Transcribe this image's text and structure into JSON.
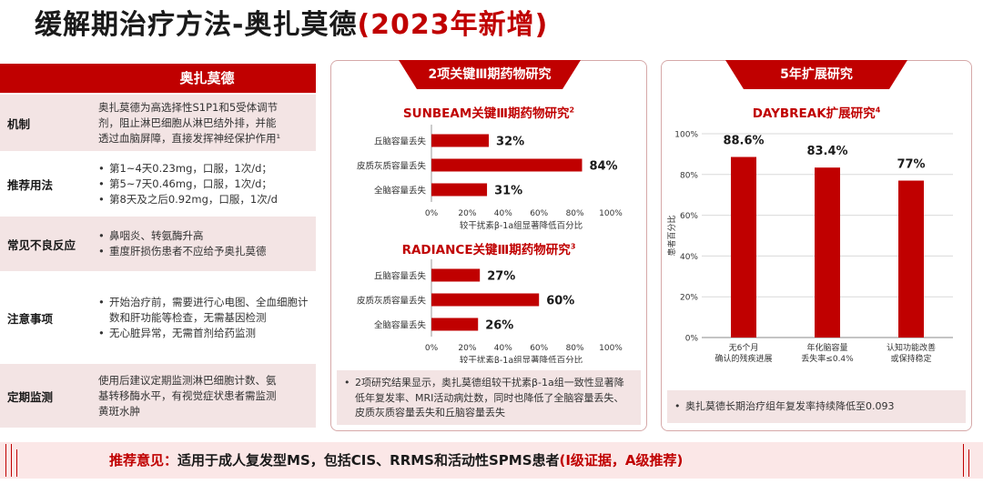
{
  "title": {
    "main": "缓解期治疗方法-奥扎莫德",
    "suffix": "(2023年新增)"
  },
  "left_table": {
    "header": "奥扎莫德",
    "rows": [
      {
        "label": "机制",
        "lines": [
          "奥扎莫德为高选择性S1P1和5受体调节",
          "剂，阻止淋巴细胞从淋巴结外排，并能",
          "透过血脑屏障，直接发挥神经保护作用¹"
        ]
      },
      {
        "label": "推荐用法",
        "bullets": [
          "第1~4天0.23mg，口服，1次/d；",
          "第5~7天0.46mg，口服，1次/d；",
          "第8天及之后0.92mg，口服，1次/d"
        ]
      },
      {
        "label": "常见不良反应",
        "bullets": [
          "鼻咽炎、转氨酶升高",
          "重度肝损伤患者不应给予奥扎莫德"
        ]
      },
      {
        "label": "注意事项",
        "bullets": [
          "开始治疗前，需要进行心电图、全血细胞计数和肝功能等检查，无需基因检测",
          "无心脏异常，无需首剂给药监测"
        ]
      },
      {
        "label": "定期监测",
        "lines": [
          "使用后建议定期监测淋巴细胞计数、氨",
          "基转移酶水平，有视觉症状患者需监测",
          "黄斑水肿"
        ]
      }
    ]
  },
  "mid_panel": {
    "tab": "2项关键Ⅲ期药物研究",
    "note": "2项研究结果显示，奥扎莫德组较干扰素β-1a组一致性显著降低年复发率、MRI活动病灶数，同时也降低了全脑容量丢失、皮质灰质容量丢失和丘脑容量丢失"
  },
  "right_panel": {
    "tab": "5年扩展研究",
    "note": "奥扎莫德长期治疗组年复发率持续降低至0.093"
  },
  "chart_data": [
    {
      "type": "bar",
      "orientation": "horizontal",
      "title": "SUNBEAM关键Ⅲ期药物研究",
      "title_sup": "2",
      "categories": [
        "丘脑容量丢失",
        "皮质灰质容量丢失",
        "全脑容量丢失"
      ],
      "values": [
        32,
        84,
        31
      ],
      "value_labels": [
        "32%",
        "84%",
        "31%"
      ],
      "xlabel": "较干扰素β-1a组显著降低百分比",
      "xticks": [
        "0%",
        "20%",
        "40%",
        "60%",
        "80%",
        "100%"
      ],
      "xlim": [
        0,
        100
      ],
      "color": "#c00000"
    },
    {
      "type": "bar",
      "orientation": "horizontal",
      "title": "RADIANCE关键Ⅲ期药物研究",
      "title_sup": "3",
      "categories": [
        "丘脑容量丢失",
        "皮质灰质容量丢失",
        "全脑容量丢失"
      ],
      "values": [
        27,
        60,
        26
      ],
      "value_labels": [
        "27%",
        "60%",
        "26%"
      ],
      "xlabel": "较干扰素β-1a组显著降低百分比",
      "xticks": [
        "0%",
        "20%",
        "40%",
        "60%",
        "80%",
        "100%"
      ],
      "xlim": [
        0,
        100
      ],
      "color": "#c00000"
    },
    {
      "type": "bar",
      "orientation": "vertical",
      "title": "DAYBREAK扩展研究",
      "title_sup": "4",
      "categories": [
        [
          "无6个月",
          "确认的残疾进展"
        ],
        [
          "年化脑容量",
          "丢失率≤0.4%"
        ],
        [
          "认知功能改善",
          "或保持稳定"
        ]
      ],
      "values": [
        88.6,
        83.4,
        77
      ],
      "value_labels": [
        "88.6%",
        "83.4%",
        "77%"
      ],
      "ylabel": "患者百分比",
      "yticks": [
        "0%",
        "20%",
        "40%",
        "60%",
        "80%",
        "100%"
      ],
      "ylim": [
        0,
        100
      ],
      "color": "#c00000"
    }
  ],
  "bottom": {
    "label": "推荐意见：",
    "text": "适用于成人复发型MS，包括CIS、RRMS和活动性SPMS患者",
    "evidence": "(Ⅰ级证据，A级推荐)"
  },
  "colors": {
    "accent": "#c00000",
    "shade": "#f3e4e4",
    "bottom_bg": "#fbe7e7"
  }
}
